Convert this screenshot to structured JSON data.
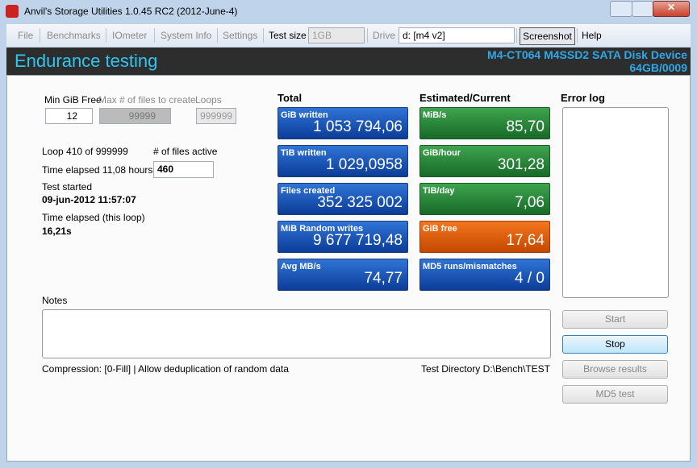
{
  "window": {
    "title": "Anvil's Storage Utilities 1.0.45 RC2 (2012-June-4)"
  },
  "menu": {
    "items": [
      "File",
      "Benchmarks",
      "IOmeter",
      "System Info",
      "Settings"
    ],
    "test_size_label": "Test size",
    "test_size": "1GB",
    "drive_label": "Drive",
    "drive": "d: [m4 v2]",
    "screenshot": "Screenshot",
    "help": "Help"
  },
  "header": {
    "title": "Endurance testing",
    "device": "M4-CT064 M4SSD2 SATA Disk Device",
    "firmware": "64GB/0009"
  },
  "settings": {
    "min_free_label": "Min GiB Free",
    "min_free": "12",
    "max_files_label": "Max # of files to create",
    "max_files": "99999",
    "loops_label": "Loops",
    "loops": "999999"
  },
  "status": {
    "loop": "Loop 410 of 999999",
    "files_active_label": "# of files active",
    "files_active": "460",
    "time_elapsed": "Time elapsed 11,08 hours",
    "test_started_label": "Test started",
    "test_started": "09-jun-2012 11:57:07",
    "loop_elapsed_label": "Time elapsed (this loop)",
    "loop_elapsed": "16,21s"
  },
  "total": {
    "title": "Total",
    "tiles": [
      {
        "label": "GiB written",
        "value": "1 053 794,06"
      },
      {
        "label": "TiB written",
        "value": "1 029,0958"
      },
      {
        "label": "Files created",
        "value": "352 325 002"
      },
      {
        "label": "MiB Random writes",
        "value": "9 677 719,48"
      },
      {
        "label": "Avg MB/s",
        "value": "74,77"
      }
    ]
  },
  "current": {
    "title": "Estimated/Current",
    "tiles": [
      {
        "label": "MiB/s",
        "value": "85,70"
      },
      {
        "label": "GiB/hour",
        "value": "301,28"
      },
      {
        "label": "TiB/day",
        "value": "7,06"
      },
      {
        "label": "GiB free",
        "value": "17,64"
      },
      {
        "label": "MD5 runs/mismatches",
        "value": "4 / 0"
      }
    ]
  },
  "error_log": {
    "title": "Error log"
  },
  "notes": {
    "title": "Notes"
  },
  "buttons": [
    "Start",
    "Stop",
    "Browse results",
    "MD5 test"
  ],
  "footer": {
    "compression": "Compression: [0-Fill] | Allow deduplication of random data",
    "directory": "Test Directory D:\\Bench\\TEST"
  }
}
